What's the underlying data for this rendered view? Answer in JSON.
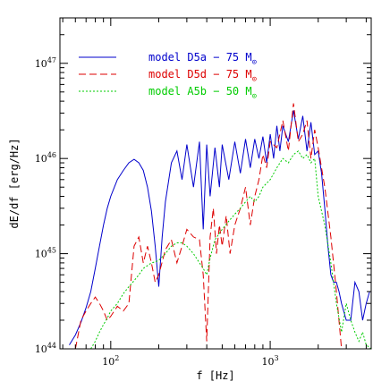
{
  "chart_data": {
    "type": "line",
    "xlabel": "f [Hz]",
    "ylabel": "dE/df [erg/Hz]",
    "xscale": "log",
    "yscale": "log",
    "xlim": [
      48,
      4300
    ],
    "ylim": [
      1e+44,
      3e+47
    ],
    "grid": false,
    "legend_position": "top-left",
    "x_ticks": [
      {
        "value": 100,
        "label_base": "10",
        "label_exp": "2"
      },
      {
        "value": 1000,
        "label_base": "10",
        "label_exp": "3"
      }
    ],
    "y_ticks": [
      {
        "value": 1e+44,
        "label_base": "10",
        "label_exp": "44"
      },
      {
        "value": 1e+45,
        "label_base": "10",
        "label_exp": "45"
      },
      {
        "value": 1e+46,
        "label_base": "10",
        "label_exp": "46"
      },
      {
        "value": 1e+47,
        "label_base": "10",
        "label_exp": "47"
      }
    ],
    "series": [
      {
        "name": "model D5a − 75 M",
        "name_subscript": "⊙",
        "color": "#0000cc",
        "dash": "solid",
        "x": [
          55,
          60,
          65,
          70,
          75,
          80,
          85,
          90,
          95,
          100,
          110,
          120,
          130,
          140,
          150,
          160,
          170,
          180,
          190,
          200,
          210,
          220,
          240,
          260,
          280,
          300,
          330,
          360,
          380,
          400,
          420,
          450,
          480,
          500,
          550,
          600,
          650,
          700,
          750,
          800,
          850,
          900,
          950,
          1000,
          1050,
          1100,
          1150,
          1200,
          1300,
          1400,
          1500,
          1600,
          1700,
          1800,
          1900,
          2000,
          2100,
          2200,
          2300,
          2400,
          2500,
          2600,
          2700,
          2800,
          3000,
          3200,
          3400,
          3600,
          3800,
          4000,
          4200
        ],
        "y": [
          1.1e+44,
          1.4e+44,
          1.9e+44,
          2.7e+44,
          4e+44,
          7e+44,
          1.2e+45,
          2e+45,
          3e+45,
          4e+45,
          6e+45,
          7.5e+45,
          9e+45,
          9.8e+45,
          9e+45,
          7.5e+45,
          5e+45,
          2.8e+45,
          1.2e+45,
          4.5e+44,
          1.5e+45,
          3.5e+45,
          9e+45,
          1.2e+46,
          6e+45,
          1.4e+46,
          5e+45,
          1.5e+46,
          1.8e+45,
          1.4e+46,
          4e+45,
          1.3e+46,
          5e+45,
          1.4e+46,
          6e+45,
          1.5e+46,
          7e+45,
          1.6e+46,
          8e+45,
          1.6e+46,
          1e+46,
          1.7e+46,
          9e+45,
          1.8e+46,
          1e+46,
          2.2e+46,
          1.2e+46,
          2.2e+46,
          1.5e+46,
          3.2e+46,
          1.6e+46,
          2.8e+46,
          1.2e+46,
          2.4e+46,
          1.1e+46,
          1.2e+46,
          7e+45,
          3e+45,
          1.2e+45,
          6e+44,
          5e+44,
          5e+44,
          4e+44,
          3e+44,
          2e+44,
          2e+44,
          5e+44,
          4e+44,
          2e+44,
          3e+44,
          4e+44
        ]
      },
      {
        "name": "model D5d − 75 M",
        "name_subscript": "⊙",
        "color": "#dd0000",
        "dash": "8,4",
        "x": [
          60,
          65,
          70,
          75,
          80,
          85,
          90,
          95,
          100,
          110,
          120,
          130,
          140,
          150,
          160,
          170,
          180,
          190,
          200,
          220,
          240,
          260,
          280,
          300,
          330,
          360,
          380,
          400,
          420,
          440,
          460,
          480,
          500,
          530,
          560,
          600,
          650,
          700,
          750,
          800,
          850,
          900,
          950,
          1000,
          1100,
          1200,
          1300,
          1400,
          1500,
          1600,
          1700,
          1800,
          1900,
          2000,
          2200,
          2400,
          2600,
          2800
        ],
        "y": [
          1e+44,
          2e+44,
          2.5e+44,
          3e+44,
          3.5e+44,
          3e+44,
          2.5e+44,
          2e+44,
          2.2e+44,
          2.8e+44,
          2.5e+44,
          3e+44,
          1.2e+45,
          1.5e+45,
          8e+44,
          1.2e+45,
          8e+44,
          5e+44,
          6e+44,
          1.1e+45,
          1.4e+45,
          8e+44,
          1.2e+45,
          1.8e+45,
          1.5e+45,
          1.4e+45,
          6e+44,
          1.2e+44,
          1.5e+45,
          3e+45,
          1e+45,
          2e+45,
          1.2e+45,
          2.5e+45,
          1e+45,
          2e+45,
          3e+45,
          5e+45,
          2e+45,
          4e+45,
          6e+45,
          1.1e+46,
          8e+45,
          1.5e+46,
          1.3e+46,
          2.5e+46,
          1.2e+46,
          3.8e+46,
          1.5e+46,
          1.8e+46,
          2.5e+46,
          1e+46,
          2e+46,
          1.3e+46,
          5e+45,
          1.5e+45,
          4e+44,
          1e+44
        ]
      },
      {
        "name": "model A5b − 50 M",
        "name_subscript": "⊙",
        "color": "#00cc00",
        "dash": "2,2",
        "x": [
          75,
          80,
          85,
          90,
          95,
          100,
          110,
          120,
          130,
          140,
          150,
          160,
          170,
          180,
          190,
          200,
          220,
          240,
          260,
          280,
          300,
          330,
          360,
          380,
          400,
          420,
          450,
          500,
          550,
          600,
          650,
          700,
          750,
          800,
          850,
          900,
          950,
          1000,
          1100,
          1200,
          1300,
          1400,
          1500,
          1600,
          1700,
          1800,
          1900,
          2000,
          2200,
          2400,
          2600,
          2800,
          3000,
          3200,
          3400,
          3600,
          3800,
          4000,
          4300
        ],
        "y": [
          1e+44,
          1.2e+44,
          1.5e+44,
          1.8e+44,
          2.1e+44,
          2.5e+44,
          3e+44,
          3.8e+44,
          4.5e+44,
          5.2e+44,
          6e+44,
          7e+44,
          7.5e+44,
          8e+44,
          8.2e+44,
          8.5e+44,
          1e+45,
          1.2e+45,
          1.3e+45,
          1.3e+45,
          1.2e+45,
          1e+45,
          8e+44,
          7e+44,
          6e+44,
          9e+44,
          1.4e+45,
          1.8e+45,
          2.2e+45,
          2.6e+45,
          3e+45,
          3.5e+45,
          4e+45,
          3.5e+45,
          4e+45,
          5e+45,
          5.5e+45,
          6e+45,
          8e+45,
          1e+46,
          9e+45,
          1.1e+46,
          1.2e+46,
          1e+46,
          1.1e+46,
          9e+45,
          1e+46,
          4e+45,
          2e+45,
          8e+44,
          3e+44,
          1.5e+44,
          3e+44,
          2e+44,
          1.5e+44,
          1.2e+44,
          1.5e+44,
          1.1e+44,
          1e+44
        ]
      }
    ]
  }
}
